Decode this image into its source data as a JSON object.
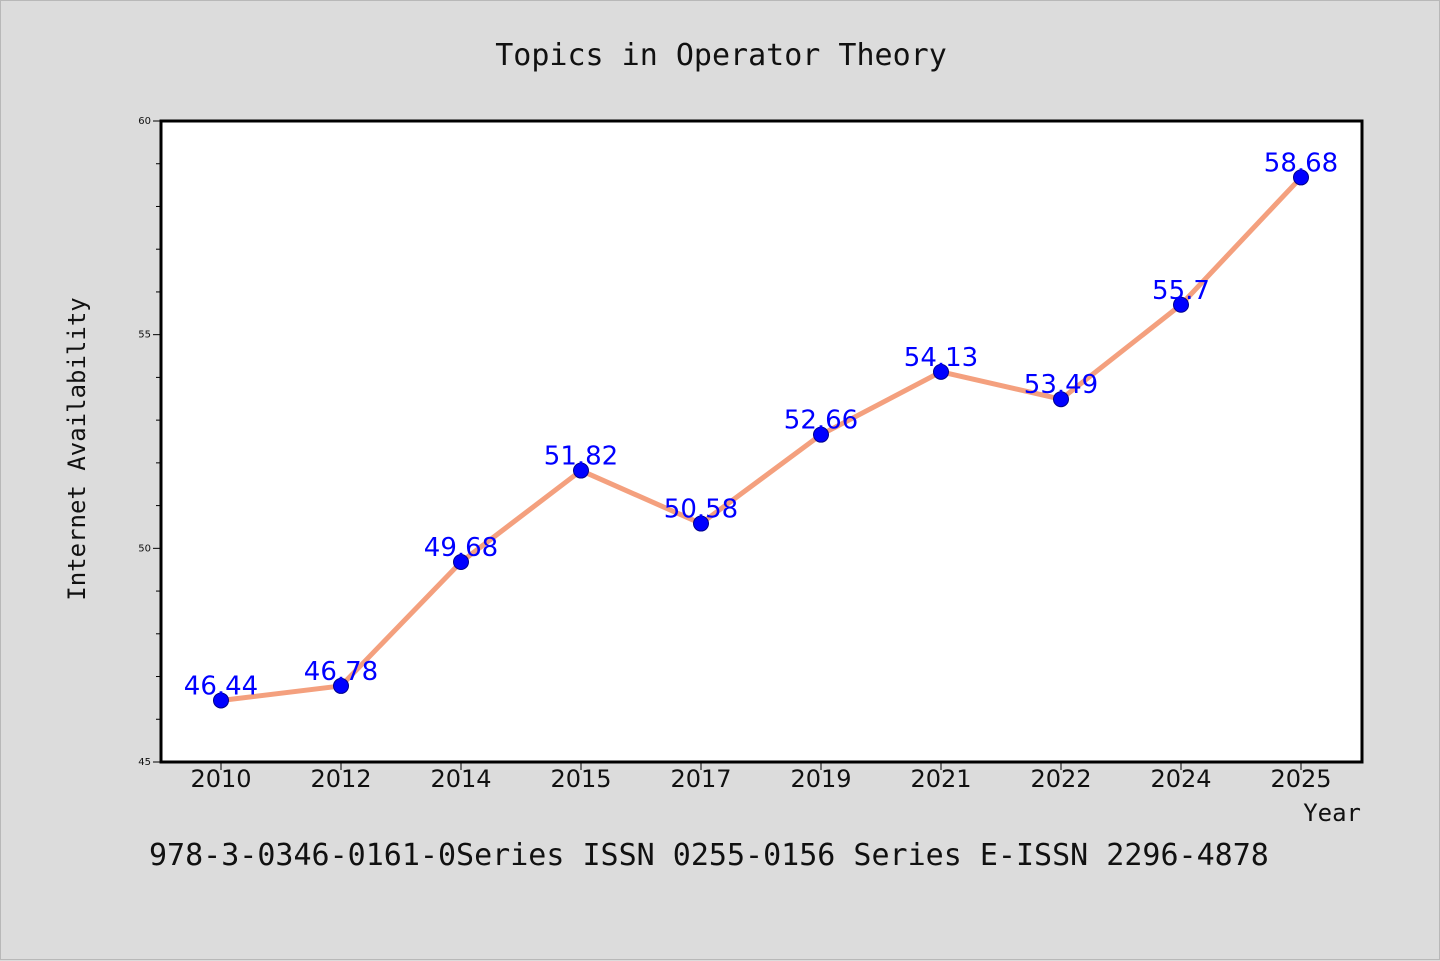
{
  "chart_data": {
    "type": "line",
    "title": "Topics in Operator Theory",
    "xlabel": "Year",
    "ylabel": "Internet Availability",
    "categories": [
      "2010",
      "2012",
      "2014",
      "2015",
      "2017",
      "2019",
      "2021",
      "2022",
      "2024",
      "2025"
    ],
    "values": [
      46.44,
      46.78,
      49.68,
      51.82,
      50.58,
      52.66,
      54.13,
      53.49,
      55.7,
      58.68
    ],
    "data_labels": [
      "46.44",
      "46.78",
      "49.68",
      "51.82",
      "50.58",
      "52.66",
      "54.13",
      "53.49",
      "55.7",
      "58.68"
    ],
    "ylim": [
      45,
      60
    ],
    "yticks": [
      "45",
      "50",
      "55",
      "60"
    ],
    "grid": false,
    "line_color": "#f4a07e",
    "marker_color": "#0000ff",
    "label_color": "#0000ff"
  },
  "footer": "978-3-0346-0161-0Series ISSN 0255-0156 Series E-ISSN 2296-4878"
}
